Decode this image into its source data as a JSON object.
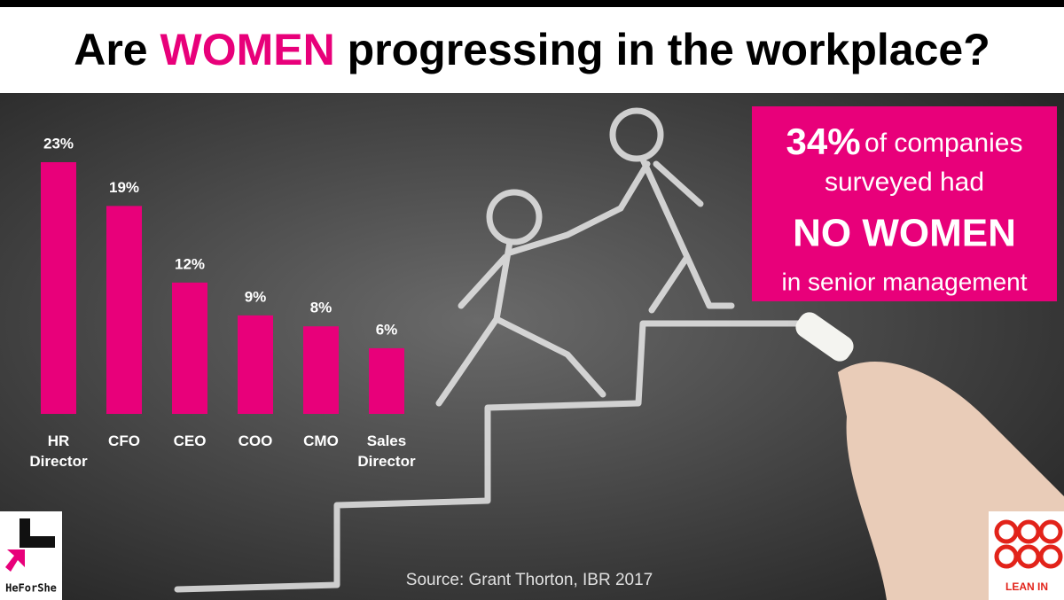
{
  "header": {
    "title_start": "Are",
    "title_highlight": "WOMEN",
    "title_end": "progressing in the workplace?"
  },
  "chart_data": {
    "type": "bar",
    "categories": [
      "HR Director",
      "CFO",
      "CEO",
      "COO",
      "CMO",
      "Sales Director"
    ],
    "values": [
      23,
      19,
      12,
      9,
      8,
      6
    ],
    "value_labels": [
      "23%",
      "19%",
      "12%",
      "9%",
      "8%",
      "6%"
    ],
    "color": "#e8007a"
  },
  "callout": {
    "stat": "34%",
    "line1": "of companies",
    "line2": "surveyed had",
    "emphasis": "NO WOMEN",
    "line3": "in senior management"
  },
  "source": "Source: Grant Thorton, IBR 2017",
  "logos": {
    "left": "HeForShe",
    "right": "LEAN IN"
  }
}
